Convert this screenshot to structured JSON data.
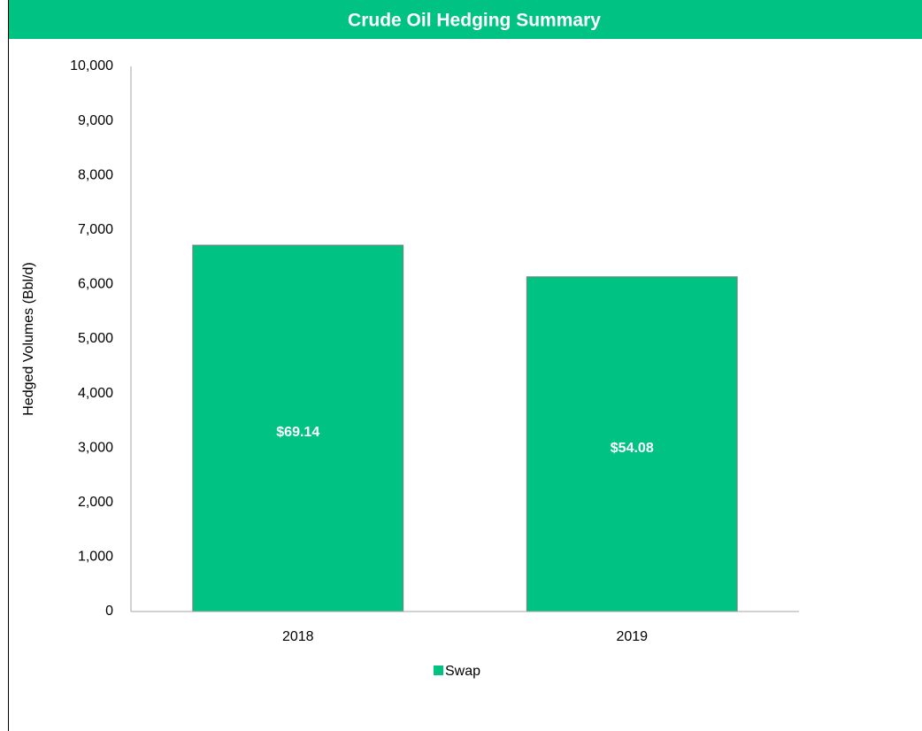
{
  "chart_data": {
    "type": "bar",
    "title": "Crude Oil Hedging Summary",
    "ylabel": "Hedged Volumes (Bbl/d)",
    "categories": [
      "2018",
      "2019"
    ],
    "series": [
      {
        "name": "Swap",
        "color": "#00c282",
        "values": [
          6720,
          6140
        ]
      }
    ],
    "bar_labels": [
      "$69.14",
      "$54.08"
    ],
    "ylim": [
      0,
      10000
    ],
    "yticks": [
      0,
      {
        "value": 1000,
        "label": "1,000"
      },
      {
        "value": 2000,
        "label": "2,000"
      },
      {
        "value": 3000,
        "label": "3,000"
      },
      {
        "value": 4000,
        "label": "4,000"
      },
      {
        "value": 5000,
        "label": "5,000"
      },
      {
        "value": 6000,
        "label": "6,000"
      },
      {
        "value": 7000,
        "label": "7,000"
      },
      {
        "value": 8000,
        "label": "8,000"
      },
      {
        "value": 9000,
        "label": "9,000"
      },
      {
        "value": 10000,
        "label": "10,000"
      }
    ],
    "grid": false,
    "legend": "bottom"
  }
}
